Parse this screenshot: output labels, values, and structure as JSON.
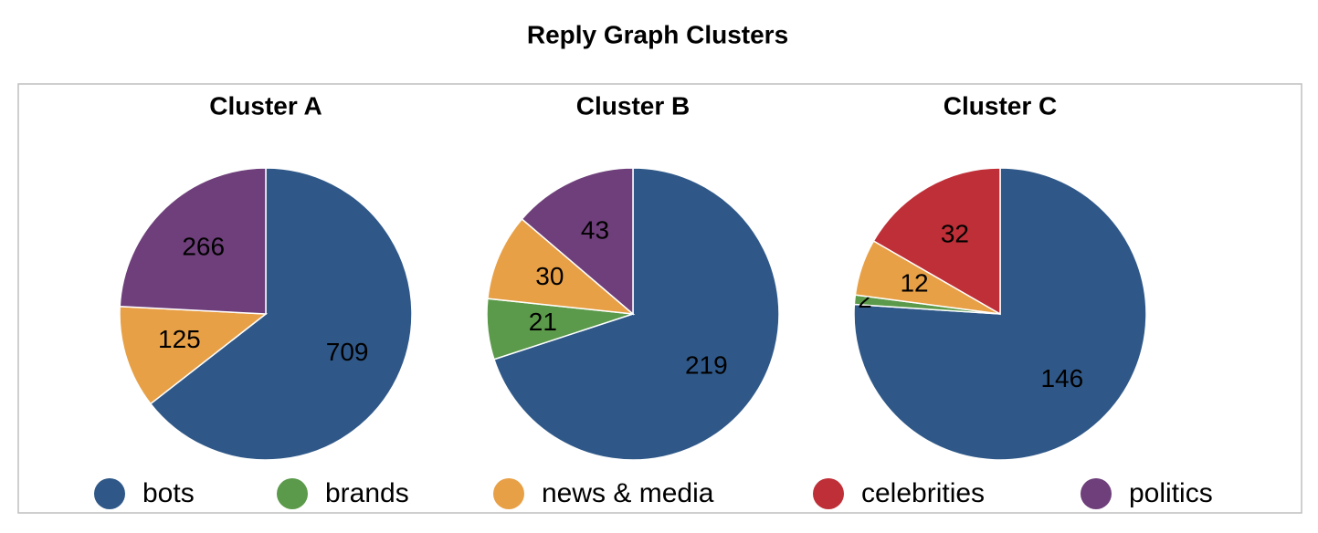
{
  "title": "Reply Graph Clusters",
  "legend": [
    {
      "name": "bots",
      "color": "#2f5888"
    },
    {
      "name": "brands",
      "color": "#5b9a4a"
    },
    {
      "name": "news & media",
      "color": "#e8a046"
    },
    {
      "name": "celebrities",
      "color": "#bf2f37"
    },
    {
      "name": "politics",
      "color": "#6e3f7a"
    }
  ],
  "chart_data": [
    {
      "type": "pie",
      "title": "Cluster A",
      "categories": [
        "bots",
        "news & media",
        "politics"
      ],
      "values": [
        709,
        125,
        266
      ]
    },
    {
      "type": "pie",
      "title": "Cluster B",
      "categories": [
        "bots",
        "brands",
        "news & media",
        "politics"
      ],
      "values": [
        219,
        21,
        30,
        43
      ]
    },
    {
      "type": "pie",
      "title": "Cluster C",
      "categories": [
        "bots",
        "brands",
        "news & media",
        "celebrities"
      ],
      "values": [
        146,
        2,
        12,
        32
      ]
    }
  ]
}
